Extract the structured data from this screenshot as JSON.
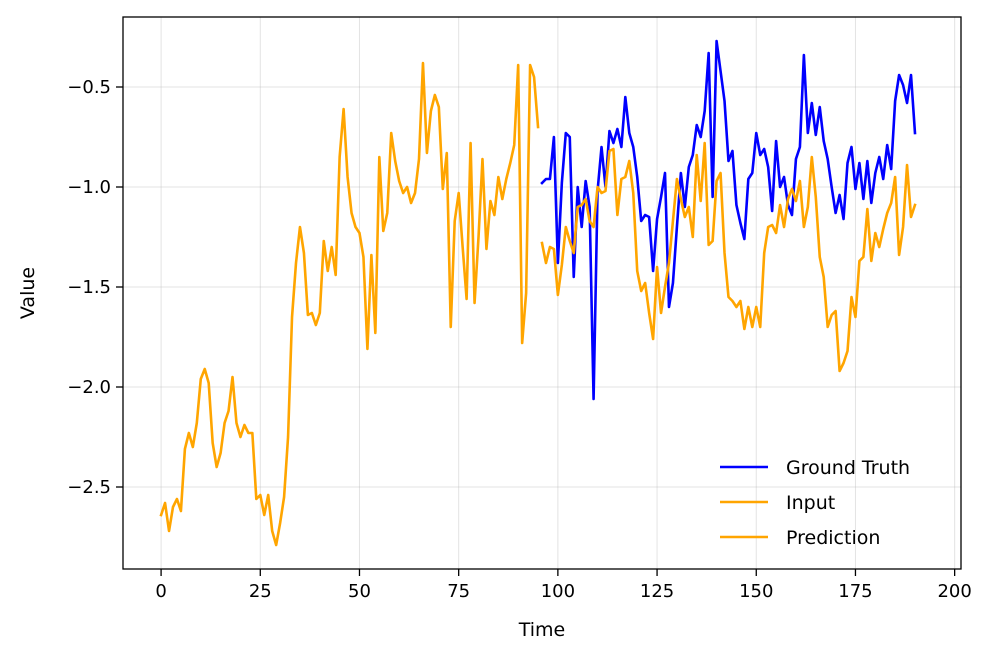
{
  "chart_data": {
    "type": "line",
    "title": "",
    "xlabel": "Time",
    "ylabel": "Value",
    "xlim": [
      -9.6,
      201.6
    ],
    "ylim": [
      -2.91,
      -0.15
    ],
    "xticks": [
      0,
      25,
      50,
      75,
      100,
      125,
      150,
      175,
      200
    ],
    "xtick_labels": [
      "0",
      "25",
      "50",
      "75",
      "100",
      "125",
      "150",
      "175",
      "200"
    ],
    "yticks": [
      -2.5,
      -2.0,
      -1.5,
      -1.0,
      -0.5
    ],
    "ytick_labels": [
      "−2.5",
      "−2.0",
      "−1.5",
      "−1.0",
      "−0.5"
    ],
    "grid": true,
    "legend_position": "lower-right",
    "series": [
      {
        "name": "Ground Truth",
        "color": "#0000ff",
        "x_start": 96,
        "values": [
          -0.98,
          -0.96,
          -0.96,
          -0.75,
          -1.38,
          -0.98,
          -0.73,
          -0.75,
          -1.45,
          -1.0,
          -1.2,
          -0.97,
          -1.1,
          -2.06,
          -1.02,
          -0.8,
          -1.0,
          -0.72,
          -0.78,
          -0.71,
          -0.8,
          -0.55,
          -0.73,
          -0.8,
          -0.95,
          -1.17,
          -1.14,
          -1.15,
          -1.42,
          -1.16,
          -1.05,
          -0.93,
          -1.6,
          -1.48,
          -1.2,
          -0.93,
          -1.1,
          -0.9,
          -0.84,
          -0.69,
          -0.75,
          -0.62,
          -0.33,
          -1.05,
          -0.27,
          -0.42,
          -0.57,
          -0.87,
          -0.82,
          -1.09,
          -1.18,
          -1.26,
          -0.96,
          -0.93,
          -0.73,
          -0.84,
          -0.81,
          -0.9,
          -1.12,
          -0.77,
          -1.0,
          -0.95,
          -1.09,
          -1.14,
          -0.86,
          -0.8,
          -0.34,
          -0.73,
          -0.58,
          -0.74,
          -0.6,
          -0.77,
          -0.86,
          -1.0,
          -1.13,
          -1.04,
          -1.16,
          -0.88,
          -0.8,
          -1.01,
          -0.88,
          -1.06,
          -0.87,
          -1.08,
          -0.93,
          -0.85,
          -0.96,
          -0.79,
          -0.91,
          -0.57,
          -0.44,
          -0.49,
          -0.58,
          -0.44,
          -0.73
        ]
      },
      {
        "name": "Input",
        "color": "#ffa500",
        "x_start": 0,
        "values": [
          -2.64,
          -2.58,
          -2.72,
          -2.6,
          -2.56,
          -2.62,
          -2.31,
          -2.23,
          -2.3,
          -2.18,
          -1.96,
          -1.91,
          -1.98,
          -2.28,
          -2.4,
          -2.33,
          -2.18,
          -2.12,
          -1.95,
          -2.18,
          -2.25,
          -2.19,
          -2.23,
          -2.23,
          -2.56,
          -2.54,
          -2.64,
          -2.54,
          -2.72,
          -2.79,
          -2.68,
          -2.55,
          -2.25,
          -1.65,
          -1.38,
          -1.2,
          -1.33,
          -1.64,
          -1.63,
          -1.69,
          -1.63,
          -1.27,
          -1.42,
          -1.3,
          -1.44,
          -0.85,
          -0.61,
          -0.95,
          -1.13,
          -1.2,
          -1.23,
          -1.35,
          -1.81,
          -1.34,
          -1.73,
          -0.85,
          -1.22,
          -1.13,
          -0.73,
          -0.87,
          -0.97,
          -1.03,
          -1.0,
          -1.08,
          -1.03,
          -0.86,
          -0.38,
          -0.83,
          -0.62,
          -0.54,
          -0.6,
          -1.01,
          -0.83,
          -1.7,
          -1.17,
          -1.03,
          -1.3,
          -1.56,
          -0.78,
          -1.58,
          -1.25,
          -0.86,
          -1.31,
          -1.07,
          -1.14,
          -0.95,
          -1.06,
          -0.96,
          -0.88,
          -0.79,
          -0.39,
          -1.78,
          -1.53,
          -0.39,
          -0.45,
          -0.7
        ]
      },
      {
        "name": "Prediction",
        "color": "#ffa500",
        "x_start": 96,
        "values": [
          -1.28,
          -1.38,
          -1.3,
          -1.31,
          -1.54,
          -1.39,
          -1.2,
          -1.27,
          -1.33,
          -1.1,
          -1.09,
          -1.06,
          -1.17,
          -1.2,
          -1.0,
          -1.03,
          -1.02,
          -0.82,
          -0.81,
          -1.14,
          -0.96,
          -0.95,
          -0.87,
          -1.03,
          -1.42,
          -1.52,
          -1.48,
          -1.63,
          -1.76,
          -1.4,
          -1.63,
          -1.5,
          -1.38,
          -1.17,
          -0.96,
          -1.06,
          -1.15,
          -1.1,
          -1.25,
          -0.84,
          -1.07,
          -0.78,
          -1.29,
          -1.27,
          -0.97,
          -0.93,
          -1.33,
          -1.55,
          -1.57,
          -1.6,
          -1.57,
          -1.71,
          -1.6,
          -1.7,
          -1.6,
          -1.7,
          -1.33,
          -1.2,
          -1.19,
          -1.23,
          -1.09,
          -1.2,
          -1.06,
          -1.01,
          -1.07,
          -0.97,
          -1.2,
          -1.1,
          -0.85,
          -1.05,
          -1.35,
          -1.45,
          -1.7,
          -1.64,
          -1.62,
          -1.92,
          -1.88,
          -1.82,
          -1.55,
          -1.65,
          -1.37,
          -1.35,
          -1.11,
          -1.37,
          -1.23,
          -1.3,
          -1.21,
          -1.13,
          -1.08,
          -0.95,
          -1.34,
          -1.2,
          -0.89,
          -1.15,
          -1.09
        ]
      }
    ]
  }
}
